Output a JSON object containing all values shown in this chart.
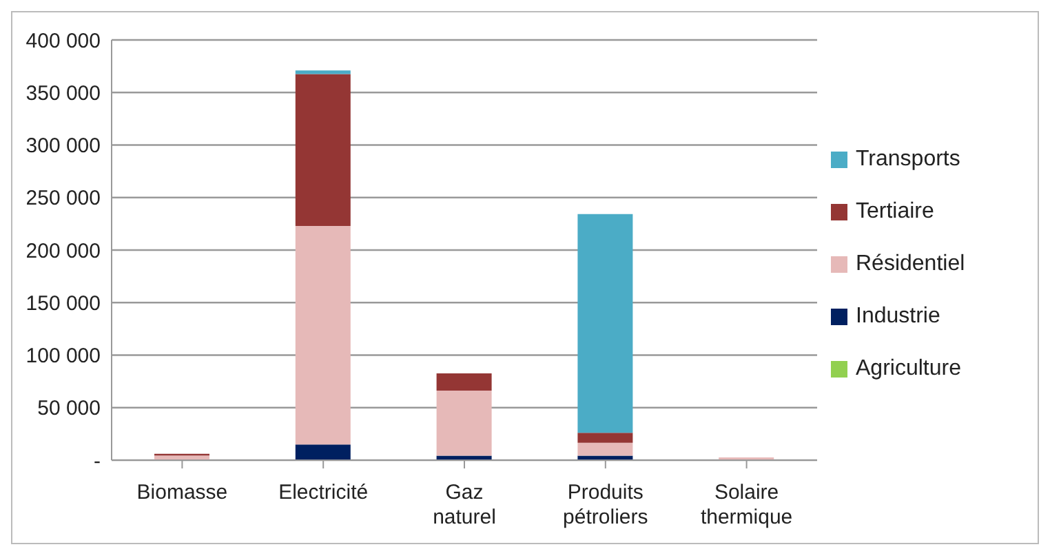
{
  "chart_data": {
    "type": "bar",
    "stacked": true,
    "categories": [
      "Biomasse",
      "Electricité",
      "Gaz naturel",
      "Produits pétroliers",
      "Solaire thermique"
    ],
    "series": [
      {
        "name": "Agriculture",
        "color": "#92d050",
        "values": [
          0,
          0,
          0,
          0,
          0
        ]
      },
      {
        "name": "Industrie",
        "color": "#002060",
        "values": [
          0,
          15000,
          4300,
          4300,
          0
        ]
      },
      {
        "name": "Résidentiel",
        "color": "#e6b9b8",
        "values": [
          4500,
          208000,
          62000,
          12300,
          2600
        ]
      },
      {
        "name": "Tertiaire",
        "color": "#943634",
        "values": [
          1500,
          144500,
          16400,
          9500,
          0
        ]
      },
      {
        "name": "Transports",
        "color": "#4bacc6",
        "values": [
          0,
          3500,
          0,
          208200,
          0
        ]
      }
    ],
    "ylim": [
      0,
      400000
    ],
    "yticks": [
      {
        "value": 0,
        "label": "-"
      },
      {
        "value": 50000,
        "label": "50 000"
      },
      {
        "value": 100000,
        "label": "100 000"
      },
      {
        "value": 150000,
        "label": "150 000"
      },
      {
        "value": 200000,
        "label": "200 000"
      },
      {
        "value": 250000,
        "label": "250 000"
      },
      {
        "value": 300000,
        "label": "300 000"
      },
      {
        "value": 350000,
        "label": "350 000"
      },
      {
        "value": 400000,
        "label": "400 000"
      }
    ],
    "grid": "y",
    "legend": "right"
  }
}
